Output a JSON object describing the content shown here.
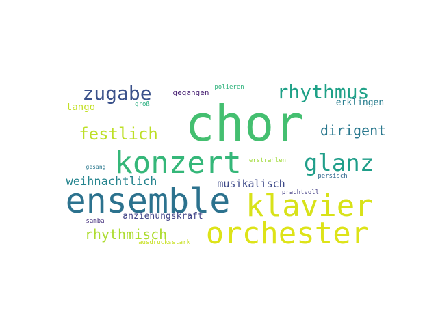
{
  "words": [
    {
      "text": "chor",
      "color": "#44bf70"
    },
    {
      "text": "ensemble",
      "color": "#2c728e"
    },
    {
      "text": "klavier",
      "color": "#d8e219"
    },
    {
      "text": "orchester",
      "color": "#dde318"
    },
    {
      "text": "konzert",
      "color": "#35b779"
    },
    {
      "text": "glanz",
      "color": "#1f9e89"
    },
    {
      "text": "zugabe",
      "color": "#3b528b"
    },
    {
      "text": "rhythmus",
      "color": "#1fa187"
    },
    {
      "text": "festlich",
      "color": "#bddf26"
    },
    {
      "text": "dirigent",
      "color": "#2a788e"
    },
    {
      "text": "rhythmisch",
      "color": "#addc30"
    },
    {
      "text": "weihnachtlich",
      "color": "#25848e"
    },
    {
      "text": "musikalisch",
      "color": "#3e4a89"
    },
    {
      "text": "anziehungskraft",
      "color": "#414487"
    },
    {
      "text": "tango",
      "color": "#c2df23"
    },
    {
      "text": "erklingen",
      "color": "#287d8e"
    },
    {
      "text": "gegangen",
      "color": "#482173"
    },
    {
      "text": "erstrahlen",
      "color": "#a0da39"
    },
    {
      "text": "polieren",
      "color": "#2eb37c"
    },
    {
      "text": "groß",
      "color": "#29af7f"
    },
    {
      "text": "persisch",
      "color": "#31688e"
    },
    {
      "text": "prachtvoll",
      "color": "#433e85"
    },
    {
      "text": "gesang",
      "color": "#2a788e"
    },
    {
      "text": "samba",
      "color": "#46327e"
    },
    {
      "text": "ausdrucksstark",
      "color": "#c8e020"
    }
  ]
}
